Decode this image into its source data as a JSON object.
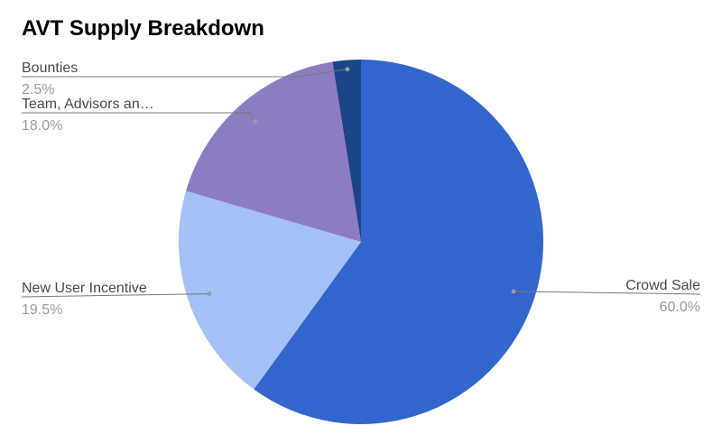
{
  "chart_data": {
    "type": "pie",
    "title": "AVT Supply Breakdown",
    "slices": [
      {
        "label": "Crowd Sale",
        "value": 60.0,
        "display": "60.0%",
        "color": "#3366cc"
      },
      {
        "label": "New User Incentive",
        "value": 19.5,
        "display": "19.5%",
        "color": "#a3c1f4"
      },
      {
        "label": "Team, Advisors an…",
        "value": 18.0,
        "display": "18.0%",
        "color": "#8e7cc3"
      },
      {
        "label": "Bounties",
        "value": 2.5,
        "display": "2.5%",
        "color": "#1c4587"
      }
    ],
    "start_angle": "12 o'clock",
    "direction": "clockwise",
    "legend": "none"
  }
}
